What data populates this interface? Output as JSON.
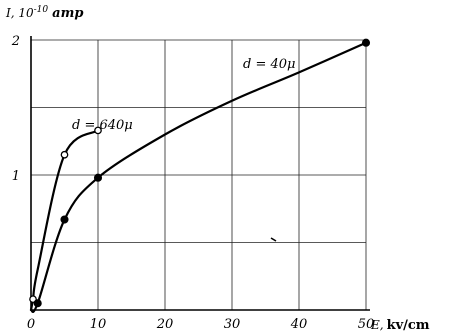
{
  "chart_data": {
    "type": "line",
    "title": "",
    "y_label": {
      "symbol": "I, 10",
      "exponent": "-10",
      "unit": "amp"
    },
    "x_label": {
      "symbol": "E,",
      "unit": "kv/cm"
    },
    "xlim": [
      0,
      50
    ],
    "ylim": [
      0,
      2
    ],
    "x_ticks": [
      "0",
      "10",
      "20",
      "30",
      "40",
      "50"
    ],
    "y_ticks": [
      "1",
      "2"
    ],
    "grid": true,
    "series": [
      {
        "name": "d = 640μ",
        "marker": "open-circle",
        "x": [
          0,
          0.3,
          1,
          5,
          10
        ],
        "y": [
          0,
          0.08,
          0.3,
          1.15,
          1.33
        ],
        "markers_x": [
          0.3,
          5,
          10
        ],
        "markers_y": [
          0.08,
          1.15,
          1.33
        ]
      },
      {
        "name": "d = 40μ",
        "marker": "filled-circle",
        "x": [
          0,
          1,
          5,
          10,
          20,
          30,
          40,
          50
        ],
        "y": [
          0,
          0.05,
          0.67,
          0.98,
          1.3,
          1.55,
          1.76,
          1.98
        ],
        "markers_x": [
          1,
          5,
          10,
          50
        ],
        "markers_y": [
          0.05,
          0.67,
          0.98,
          1.98
        ]
      }
    ],
    "annotations": [
      {
        "text": "d = 640μ",
        "series": 0
      },
      {
        "text": "d = 40μ",
        "series": 1
      }
    ]
  }
}
